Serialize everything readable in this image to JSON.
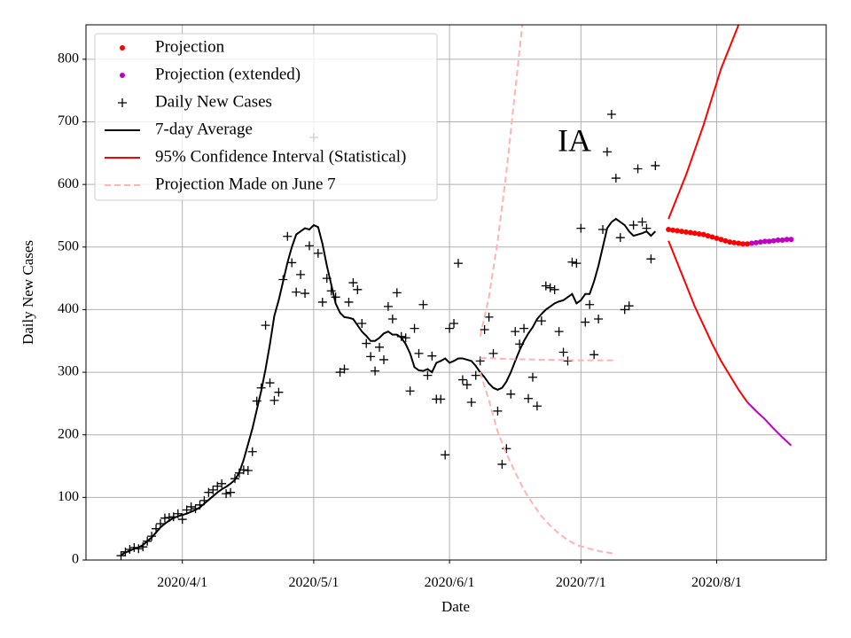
{
  "chart_data": {
    "type": "line",
    "title": "IA",
    "xlabel": "Date",
    "ylabel": "Daily New Cases",
    "xlim": [
      "2020-03-10",
      "2020-08-26"
    ],
    "xticks": [
      {
        "value": "2020-04-01",
        "label": "2020/4/1"
      },
      {
        "value": "2020-05-01",
        "label": "2020/5/1"
      },
      {
        "value": "2020-06-01",
        "label": "2020/6/1"
      },
      {
        "value": "2020-07-01",
        "label": "2020/7/1"
      },
      {
        "value": "2020-08-01",
        "label": "2020/8/1"
      }
    ],
    "ylim": [
      0,
      855
    ],
    "yticks": [
      0,
      100,
      200,
      300,
      400,
      500,
      600,
      700,
      800
    ],
    "grid": true,
    "legend": "upper left",
    "series": [
      {
        "name": "Projection",
        "style": "dots",
        "color": "#ff0000",
        "x": [
          "2020-07-21",
          "2020-07-22",
          "2020-07-23",
          "2020-07-24",
          "2020-07-25",
          "2020-07-26",
          "2020-07-27",
          "2020-07-28",
          "2020-07-29",
          "2020-07-30",
          "2020-07-31",
          "2020-08-01",
          "2020-08-02",
          "2020-08-03",
          "2020-08-04",
          "2020-08-05",
          "2020-08-06",
          "2020-08-07",
          "2020-08-08"
        ],
        "values": [
          528,
          527,
          526,
          525,
          524,
          523,
          522,
          521,
          520,
          518,
          516,
          514,
          512,
          510,
          508,
          507,
          506,
          505,
          505
        ]
      },
      {
        "name": "Projection (extended)",
        "style": "dots",
        "color": "#bf00bf",
        "x": [
          "2020-08-09",
          "2020-08-10",
          "2020-08-11",
          "2020-08-12",
          "2020-08-13",
          "2020-08-14",
          "2020-08-15",
          "2020-08-16",
          "2020-08-17",
          "2020-08-18"
        ],
        "values": [
          506,
          507,
          508,
          509,
          509,
          510,
          511,
          511,
          512,
          512
        ]
      },
      {
        "name": "Daily New Cases",
        "style": "plus",
        "color": "#000000",
        "x": [
          "2020-03-18",
          "2020-03-19",
          "2020-03-20",
          "2020-03-21",
          "2020-03-22",
          "2020-03-23",
          "2020-03-24",
          "2020-03-25",
          "2020-03-26",
          "2020-03-27",
          "2020-03-28",
          "2020-03-29",
          "2020-03-30",
          "2020-03-31",
          "2020-04-01",
          "2020-04-02",
          "2020-04-03",
          "2020-04-04",
          "2020-04-05",
          "2020-04-06",
          "2020-04-07",
          "2020-04-08",
          "2020-04-09",
          "2020-04-10",
          "2020-04-11",
          "2020-04-12",
          "2020-04-13",
          "2020-04-14",
          "2020-04-15",
          "2020-04-16",
          "2020-04-17",
          "2020-04-18",
          "2020-04-19",
          "2020-04-20",
          "2020-04-21",
          "2020-04-22",
          "2020-04-23",
          "2020-04-24",
          "2020-04-25",
          "2020-04-26",
          "2020-04-27",
          "2020-04-28",
          "2020-04-29",
          "2020-04-30",
          "2020-05-01",
          "2020-05-02",
          "2020-05-03",
          "2020-05-04",
          "2020-05-05",
          "2020-05-06",
          "2020-05-07",
          "2020-05-08",
          "2020-05-09",
          "2020-05-10",
          "2020-05-11",
          "2020-05-12",
          "2020-05-13",
          "2020-05-14",
          "2020-05-15",
          "2020-05-16",
          "2020-05-17",
          "2020-05-18",
          "2020-05-19",
          "2020-05-20",
          "2020-05-21",
          "2020-05-22",
          "2020-05-23",
          "2020-05-24",
          "2020-05-25",
          "2020-05-26",
          "2020-05-27",
          "2020-05-28",
          "2020-05-29",
          "2020-05-30",
          "2020-05-31",
          "2020-06-01",
          "2020-06-02",
          "2020-06-03",
          "2020-06-04",
          "2020-06-05",
          "2020-06-06",
          "2020-06-07",
          "2020-06-08",
          "2020-06-09",
          "2020-06-10",
          "2020-06-11",
          "2020-06-12",
          "2020-06-13",
          "2020-06-14",
          "2020-06-15",
          "2020-06-16",
          "2020-06-17",
          "2020-06-18",
          "2020-06-19",
          "2020-06-20",
          "2020-06-21",
          "2020-06-22",
          "2020-06-23",
          "2020-06-24",
          "2020-06-25",
          "2020-06-26",
          "2020-06-27",
          "2020-06-28",
          "2020-06-29",
          "2020-06-30",
          "2020-07-01",
          "2020-07-02",
          "2020-07-03",
          "2020-07-04",
          "2020-07-05",
          "2020-07-06",
          "2020-07-07",
          "2020-07-08",
          "2020-07-09",
          "2020-07-10",
          "2020-07-11",
          "2020-07-12",
          "2020-07-13",
          "2020-07-14",
          "2020-07-15",
          "2020-07-16",
          "2020-07-17",
          "2020-07-18"
        ],
        "values": [
          7,
          13,
          17,
          20,
          18,
          21,
          30,
          38,
          50,
          58,
          67,
          68,
          69,
          74,
          65,
          80,
          85,
          82,
          88,
          95,
          108,
          112,
          118,
          122,
          106,
          108,
          130,
          139,
          144,
          143,
          173,
          254,
          275,
          375,
          283,
          255,
          268,
          448,
          517,
          475,
          428,
          456,
          426,
          502,
          675,
          490,
          412,
          450,
          430,
          420,
          300,
          305,
          412,
          443,
          432,
          378,
          346,
          325,
          302,
          340,
          320,
          405,
          385,
          427,
          357,
          355,
          270,
          370,
          330,
          408,
          295,
          326,
          257,
          257,
          168,
          370,
          378,
          474,
          288,
          280,
          252,
          295,
          318,
          368,
          388,
          330,
          238,
          153,
          178,
          265,
          365,
          345,
          370,
          258,
          292,
          246,
          382,
          438,
          435,
          432,
          365,
          332,
          318,
          476,
          474,
          530,
          380,
          408,
          328,
          385,
          528,
          652,
          712,
          610,
          515,
          400,
          406,
          535,
          625,
          540,
          530,
          481,
          630
        ]
      },
      {
        "name": "7-day Average",
        "style": "line",
        "color": "#000000",
        "x": [
          "2020-03-18",
          "2020-03-19",
          "2020-03-20",
          "2020-03-21",
          "2020-03-22",
          "2020-03-23",
          "2020-03-24",
          "2020-03-25",
          "2020-03-26",
          "2020-03-27",
          "2020-03-28",
          "2020-03-29",
          "2020-03-30",
          "2020-03-31",
          "2020-04-01",
          "2020-04-02",
          "2020-04-03",
          "2020-04-04",
          "2020-04-05",
          "2020-04-06",
          "2020-04-07",
          "2020-04-08",
          "2020-04-09",
          "2020-04-10",
          "2020-04-11",
          "2020-04-12",
          "2020-04-13",
          "2020-04-14",
          "2020-04-15",
          "2020-04-16",
          "2020-04-17",
          "2020-04-18",
          "2020-04-19",
          "2020-04-20",
          "2020-04-21",
          "2020-04-22",
          "2020-04-23",
          "2020-04-24",
          "2020-04-25",
          "2020-04-26",
          "2020-04-27",
          "2020-04-28",
          "2020-04-29",
          "2020-04-30",
          "2020-05-01",
          "2020-05-02",
          "2020-05-03",
          "2020-05-04",
          "2020-05-05",
          "2020-05-06",
          "2020-05-07",
          "2020-05-08",
          "2020-05-09",
          "2020-05-10",
          "2020-05-11",
          "2020-05-12",
          "2020-05-13",
          "2020-05-14",
          "2020-05-15",
          "2020-05-16",
          "2020-05-17",
          "2020-05-18",
          "2020-05-19",
          "2020-05-20",
          "2020-05-21",
          "2020-05-22",
          "2020-05-23",
          "2020-05-24",
          "2020-05-25",
          "2020-05-26",
          "2020-05-27",
          "2020-05-28",
          "2020-05-29",
          "2020-05-30",
          "2020-05-31",
          "2020-06-01",
          "2020-06-02",
          "2020-06-03",
          "2020-06-04",
          "2020-06-05",
          "2020-06-06",
          "2020-06-07",
          "2020-06-08",
          "2020-06-09",
          "2020-06-10",
          "2020-06-11",
          "2020-06-12",
          "2020-06-13",
          "2020-06-14",
          "2020-06-15",
          "2020-06-16",
          "2020-06-17",
          "2020-06-18",
          "2020-06-19",
          "2020-06-20",
          "2020-06-21",
          "2020-06-22",
          "2020-06-23",
          "2020-06-24",
          "2020-06-25",
          "2020-06-26",
          "2020-06-27",
          "2020-06-28",
          "2020-06-29",
          "2020-06-30",
          "2020-07-01",
          "2020-07-02",
          "2020-07-03",
          "2020-07-04",
          "2020-07-05",
          "2020-07-06",
          "2020-07-07",
          "2020-07-08",
          "2020-07-09",
          "2020-07-10",
          "2020-07-11",
          "2020-07-12",
          "2020-07-13",
          "2020-07-14",
          "2020-07-15",
          "2020-07-16",
          "2020-07-17",
          "2020-07-18"
        ],
        "values": [
          8,
          12,
          15,
          18,
          20,
          24,
          30,
          36,
          44,
          52,
          58,
          63,
          67,
          70,
          72,
          74,
          77,
          80,
          84,
          90,
          96,
          102,
          108,
          113,
          117,
          122,
          128,
          140,
          160,
          185,
          210,
          240,
          270,
          305,
          345,
          390,
          415,
          445,
          475,
          500,
          520,
          525,
          530,
          528,
          535,
          532,
          505,
          470,
          440,
          410,
          395,
          388,
          387,
          385,
          375,
          365,
          358,
          350,
          350,
          355,
          362,
          365,
          360,
          360,
          355,
          345,
          330,
          308,
          303,
          302,
          305,
          300,
          315,
          318,
          322,
          315,
          318,
          322,
          322,
          320,
          318,
          310,
          300,
          292,
          282,
          275,
          272,
          275,
          285,
          300,
          318,
          335,
          350,
          362,
          372,
          385,
          393,
          400,
          405,
          410,
          413,
          415,
          420,
          425,
          410,
          415,
          425,
          425,
          445,
          470,
          500,
          530,
          540,
          545,
          540,
          535,
          525,
          518,
          520,
          522,
          525,
          518,
          525
        ]
      },
      {
        "name": "95% Confidence Interval (Statistical)",
        "style": "line",
        "color": "#ff0000",
        "x": [
          "2020-07-21",
          "2020-07-23",
          "2020-07-25",
          "2020-07-27",
          "2020-07-29",
          "2020-07-31",
          "2020-08-02",
          "2020-08-04",
          "2020-08-06"
        ],
        "values": [
          545,
          580,
          615,
          655,
          695,
          740,
          785,
          820,
          855
        ]
      },
      {
        "style": "line",
        "color": "#ff0000",
        "x": [
          "2020-07-21",
          "2020-07-23",
          "2020-07-25",
          "2020-07-27",
          "2020-07-29",
          "2020-07-31",
          "2020-08-02",
          "2020-08-04",
          "2020-08-06",
          "2020-08-08"
        ],
        "values": [
          510,
          475,
          440,
          405,
          375,
          345,
          318,
          295,
          272,
          252
        ]
      },
      {
        "style": "line",
        "color": "#bf00bf",
        "x": [
          "2020-08-08",
          "2020-08-10",
          "2020-08-12",
          "2020-08-14",
          "2020-08-16",
          "2020-08-18"
        ],
        "values": [
          252,
          238,
          225,
          210,
          196,
          183
        ]
      },
      {
        "name": "Projection Made on June 7",
        "style": "dashed",
        "color": "#ffb3b3",
        "x": [
          "2020-06-08",
          "2020-06-15",
          "2020-06-22",
          "2020-07-01",
          "2020-07-09"
        ],
        "values": [
          323,
          321,
          320,
          319,
          319
        ]
      },
      {
        "style": "dashed",
        "color": "#ffb3b3",
        "x": [
          "2020-06-08",
          "2020-06-10",
          "2020-06-12",
          "2020-06-14",
          "2020-06-16",
          "2020-06-18"
        ],
        "values": [
          357,
          420,
          510,
          620,
          750,
          880
        ]
      },
      {
        "style": "dashed",
        "color": "#ffb3b3",
        "x": [
          "2020-06-08",
          "2020-06-10",
          "2020-06-12",
          "2020-06-14",
          "2020-06-16",
          "2020-06-18",
          "2020-06-20",
          "2020-06-22",
          "2020-06-24",
          "2020-06-26",
          "2020-06-28",
          "2020-06-30",
          "2020-07-03",
          "2020-07-06",
          "2020-07-09"
        ],
        "values": [
          300,
          255,
          205,
          170,
          140,
          112,
          90,
          70,
          55,
          42,
          32,
          24,
          18,
          13,
          10
        ]
      }
    ]
  }
}
